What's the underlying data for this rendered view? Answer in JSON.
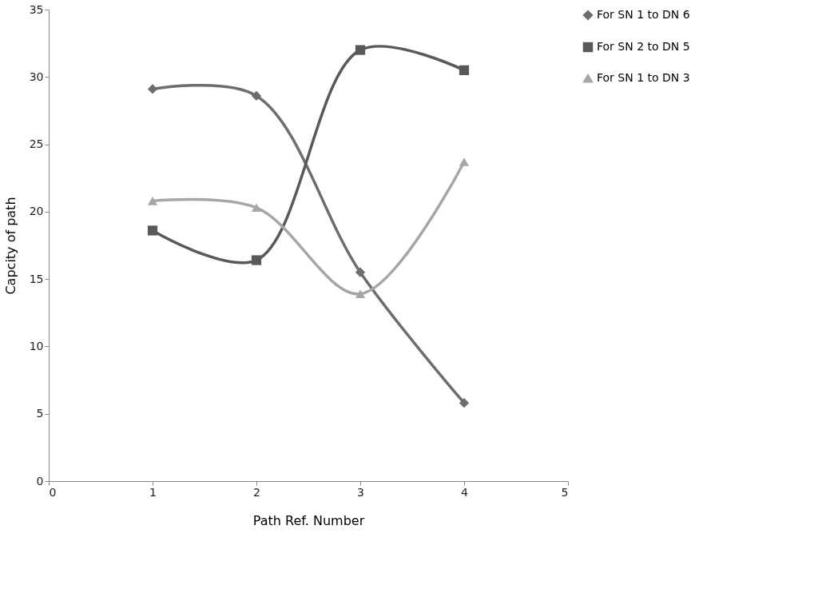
{
  "chart_data": {
    "type": "line",
    "xlabel": "Path Ref. Number",
    "ylabel": "Capcity of path",
    "x": [
      1,
      2,
      3,
      4
    ],
    "xlim": [
      0,
      5
    ],
    "xticks": [
      0,
      1,
      2,
      3,
      4,
      5
    ],
    "ylim": [
      0,
      35
    ],
    "yticks": [
      0,
      5,
      10,
      15,
      20,
      25,
      30,
      35
    ],
    "grid": false,
    "legend": "right",
    "line_style": "solid",
    "series": [
      {
        "name": "For SN 1 to DN 6",
        "color": "#6d6d6d",
        "marker": "diamond",
        "values": [
          29.1,
          28.6,
          15.5,
          5.8
        ]
      },
      {
        "name": "For SN 2 to DN 5",
        "color": "#595959",
        "marker": "square",
        "values": [
          18.6,
          16.4,
          32.0,
          30.5
        ]
      },
      {
        "name": "For SN 1 to DN 3",
        "color": "#a6a6a6",
        "marker": "triangle",
        "values": [
          20.8,
          20.3,
          13.9,
          23.7
        ]
      }
    ]
  }
}
